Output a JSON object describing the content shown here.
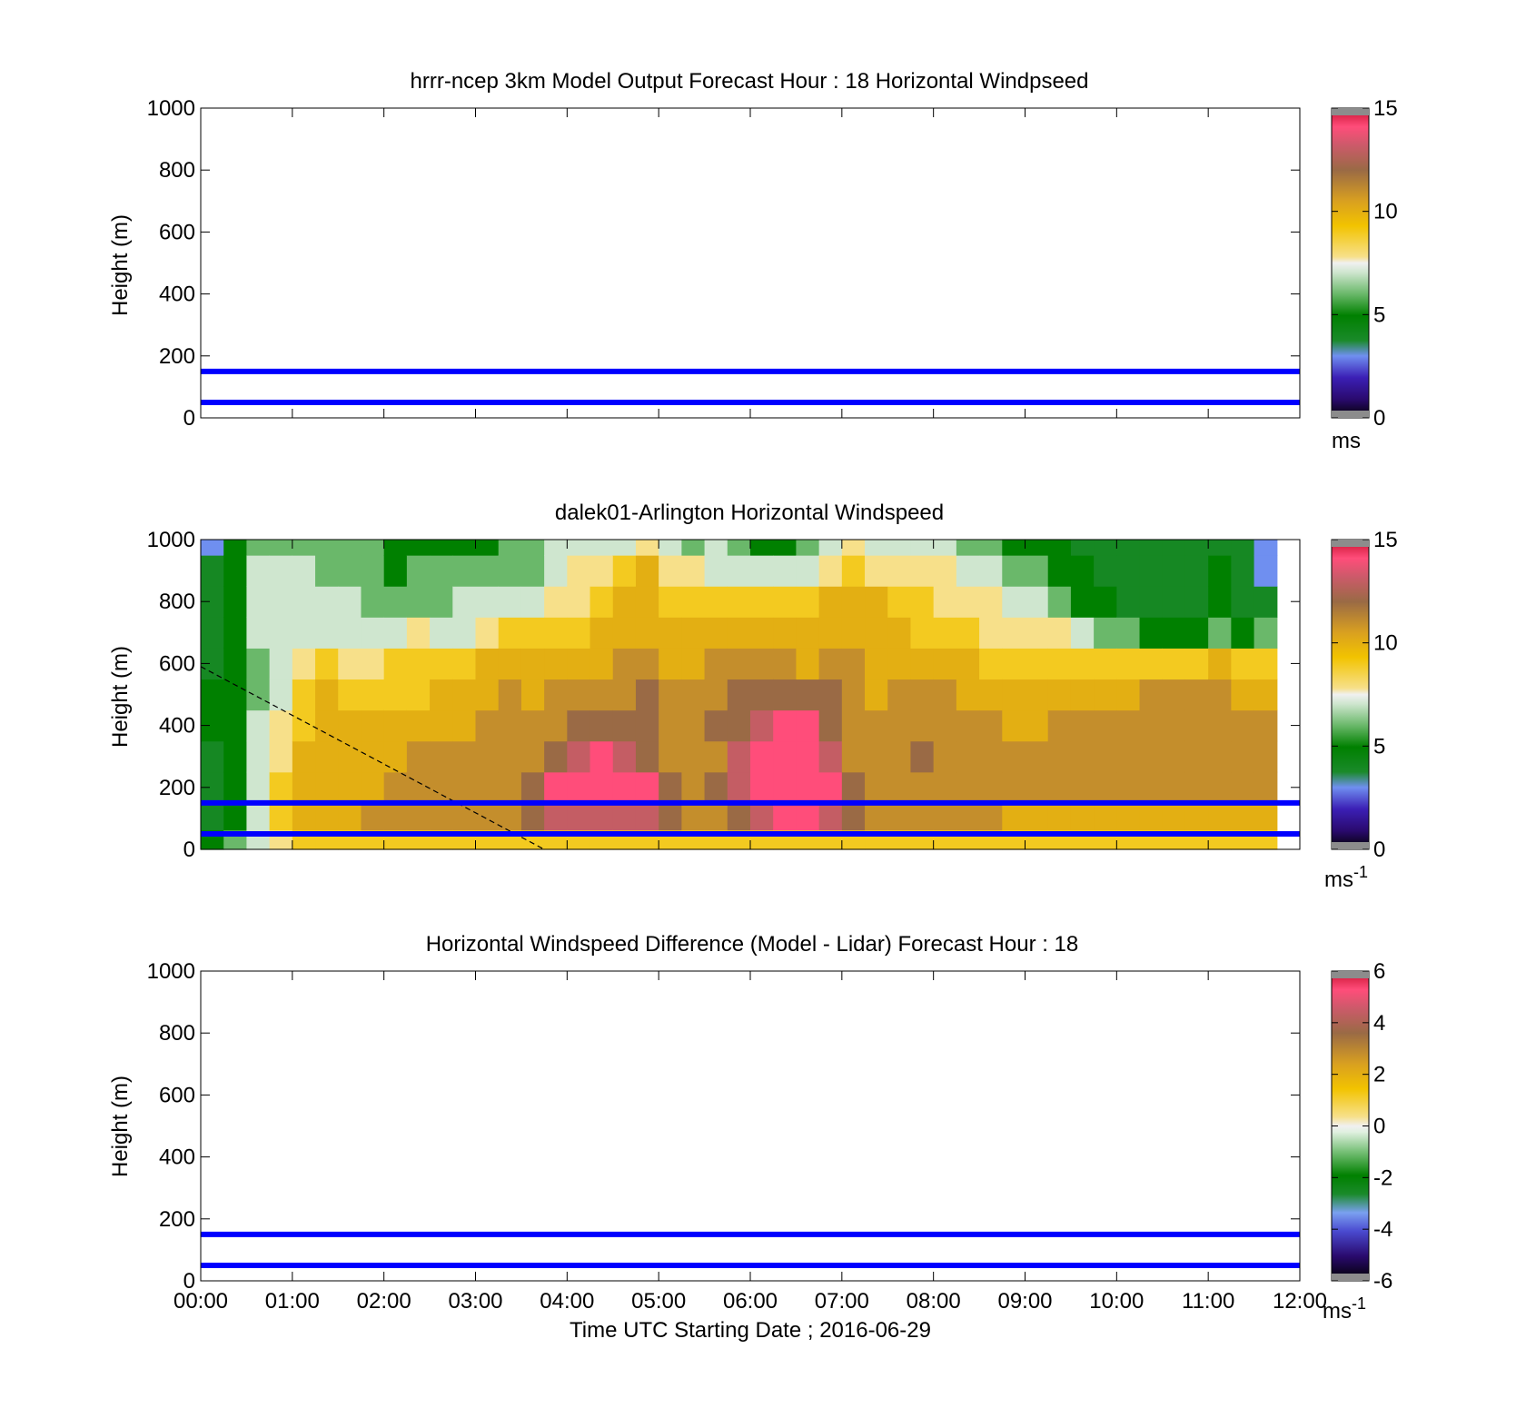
{
  "figure": {
    "xlabel": "Time UTC  Starting Date ; 2016-06-29",
    "x_ticks": [
      "00:00",
      "01:00",
      "02:00",
      "03:00",
      "04:00",
      "05:00",
      "06:00",
      "07:00",
      "08:00",
      "09:00",
      "10:00",
      "11:00",
      "12:00"
    ]
  },
  "chart_data": [
    {
      "type": "heatmap",
      "title": "hrrr-ncep 3km Model Output   Forecast Hour : 18 Horizontal Windpseed",
      "ylabel": "Height (m)",
      "xlim": [
        0,
        12
      ],
      "ylim": [
        0,
        1000
      ],
      "y_ticks": [
        "0",
        "200",
        "400",
        "600",
        "800",
        "1000"
      ],
      "colorbar": {
        "range": [
          0,
          15
        ],
        "ticks": [
          "0",
          "5",
          "10",
          "15"
        ],
        "unit": "ms"
      },
      "reference_lines_m": [
        50,
        150
      ],
      "data": "empty"
    },
    {
      "type": "heatmap",
      "title": "dalek01-Arlington  Horizontal Windspeed",
      "ylabel": "Height (m)",
      "xlim": [
        0,
        12
      ],
      "ylim": [
        0,
        1000
      ],
      "y_ticks": [
        "0",
        "200",
        "400",
        "600",
        "800",
        "1000"
      ],
      "colorbar": {
        "range": [
          0,
          15
        ],
        "ticks": [
          "0",
          "5",
          "10",
          "15"
        ],
        "unit": "ms",
        "unit_exponent": "-1"
      },
      "reference_lines_m": [
        50,
        150
      ],
      "dashed_line": {
        "from": [
          0,
          590
        ],
        "to": [
          3.75,
          0
        ]
      },
      "columns_hours": [
        0.125,
        0.375,
        0.625,
        0.875,
        1.125,
        1.375,
        1.625,
        1.875,
        2.125,
        2.375,
        2.625,
        2.875,
        3.125,
        3.375,
        3.625,
        3.875,
        4.125,
        4.375,
        4.625,
        4.875,
        5.125,
        5.375,
        5.625,
        5.875,
        6.125,
        6.375,
        6.625,
        6.875,
        7.125,
        7.375,
        7.625,
        7.875,
        8.125,
        8.375,
        8.625,
        8.875,
        9.125,
        9.375,
        9.625,
        9.875,
        10.125,
        10.375,
        10.625,
        10.875,
        11.125,
        11.375,
        11.625
      ],
      "profile_heights_m": [
        25,
        100,
        200,
        300,
        400,
        500,
        600,
        700,
        800,
        900,
        1000
      ],
      "windspeed_ms": [
        [
          5,
          4,
          4,
          4,
          5,
          5,
          4,
          4,
          4,
          4,
          3
        ],
        [
          6,
          5,
          5,
          5,
          5,
          5,
          5,
          5,
          5,
          5,
          5
        ],
        [
          7,
          7,
          7,
          7,
          7,
          6,
          6,
          7,
          7,
          7,
          6
        ],
        [
          8,
          9,
          9,
          8,
          8,
          7,
          7,
          7,
          7,
          7,
          6
        ],
        [
          9,
          10,
          10,
          10,
          9,
          9,
          8,
          7,
          7,
          7,
          6
        ],
        [
          9,
          10,
          10,
          10,
          10,
          10,
          9,
          7,
          7,
          6,
          6
        ],
        [
          9,
          10,
          10,
          10,
          10,
          9,
          8,
          7,
          7,
          6,
          6
        ],
        [
          9,
          11,
          10,
          10,
          10,
          9,
          8,
          7,
          6,
          6,
          6
        ],
        [
          9,
          11,
          11,
          10,
          10,
          9,
          9,
          7,
          6,
          5,
          5
        ],
        [
          9,
          11,
          11,
          11,
          10,
          9,
          9,
          8,
          6,
          6,
          5
        ],
        [
          9,
          11,
          11,
          11,
          10,
          10,
          9,
          7,
          6,
          6,
          5
        ],
        [
          9,
          11,
          11,
          11,
          10,
          10,
          9,
          7,
          7,
          6,
          5
        ],
        [
          9,
          11,
          11,
          11,
          11,
          10,
          10,
          8,
          7,
          6,
          5
        ],
        [
          9,
          11,
          11,
          11,
          11,
          11,
          10,
          9,
          7,
          6,
          6
        ],
        [
          9,
          12,
          12,
          11,
          11,
          10,
          10,
          9,
          7,
          6,
          6
        ],
        [
          9,
          13,
          14,
          12,
          11,
          11,
          10,
          9,
          8,
          7,
          7
        ],
        [
          9,
          13,
          14,
          13,
          12,
          11,
          10,
          9,
          8,
          8,
          7
        ],
        [
          9,
          13,
          14,
          14,
          12,
          11,
          10,
          10,
          9,
          8,
          7
        ],
        [
          9,
          13,
          14,
          13,
          12,
          11,
          11,
          10,
          10,
          9,
          7
        ],
        [
          9,
          13,
          14,
          12,
          12,
          12,
          11,
          10,
          10,
          10,
          8
        ],
        [
          9,
          12,
          12,
          11,
          11,
          11,
          10,
          10,
          9,
          8,
          7
        ],
        [
          9,
          11,
          11,
          11,
          11,
          11,
          10,
          10,
          9,
          8,
          6
        ],
        [
          9,
          11,
          12,
          11,
          12,
          11,
          11,
          10,
          9,
          7,
          7
        ],
        [
          9,
          12,
          13,
          13,
          12,
          12,
          11,
          10,
          9,
          7,
          6
        ],
        [
          9,
          13,
          14,
          14,
          13,
          12,
          11,
          10,
          9,
          7,
          5
        ],
        [
          9,
          14,
          14,
          14,
          14,
          12,
          11,
          10,
          9,
          7,
          5
        ],
        [
          9,
          14,
          14,
          14,
          14,
          12,
          10,
          10,
          9,
          7,
          6
        ],
        [
          9,
          13,
          14,
          13,
          12,
          12,
          11,
          10,
          10,
          8,
          7
        ],
        [
          9,
          12,
          12,
          11,
          11,
          11,
          11,
          10,
          10,
          9,
          8
        ],
        [
          9,
          11,
          11,
          11,
          11,
          10,
          10,
          10,
          10,
          8,
          7
        ],
        [
          9,
          11,
          11,
          11,
          11,
          11,
          10,
          10,
          9,
          8,
          7
        ],
        [
          9,
          11,
          11,
          12,
          11,
          11,
          10,
          9,
          9,
          8,
          7
        ],
        [
          9,
          11,
          11,
          11,
          11,
          11,
          10,
          9,
          8,
          8,
          7
        ],
        [
          9,
          11,
          11,
          11,
          11,
          10,
          10,
          9,
          8,
          7,
          6
        ],
        [
          9,
          11,
          11,
          11,
          11,
          10,
          9,
          8,
          8,
          7,
          6
        ],
        [
          9,
          10,
          11,
          11,
          10,
          10,
          9,
          8,
          7,
          6,
          5
        ],
        [
          9,
          10,
          11,
          11,
          10,
          10,
          9,
          8,
          7,
          6,
          5
        ],
        [
          9,
          10,
          11,
          11,
          11,
          10,
          9,
          8,
          6,
          5,
          5
        ],
        [
          9,
          10,
          11,
          11,
          11,
          10,
          9,
          7,
          5,
          5,
          4
        ],
        [
          9,
          10,
          11,
          11,
          11,
          10,
          9,
          6,
          5,
          4,
          4
        ],
        [
          9,
          10,
          11,
          11,
          11,
          10,
          9,
          6,
          4,
          4,
          4
        ],
        [
          9,
          10,
          11,
          11,
          11,
          11,
          9,
          5,
          4,
          4,
          4
        ],
        [
          9,
          10,
          11,
          11,
          11,
          11,
          9,
          5,
          4,
          4,
          4
        ],
        [
          9,
          10,
          11,
          11,
          11,
          11,
          9,
          5,
          4,
          4,
          4
        ],
        [
          9,
          10,
          11,
          11,
          11,
          11,
          10,
          6,
          5,
          5,
          4
        ],
        [
          9,
          10,
          11,
          11,
          11,
          10,
          9,
          5,
          4,
          4,
          4
        ],
        [
          9,
          10,
          11,
          11,
          11,
          10,
          9,
          6,
          4,
          3,
          3
        ]
      ]
    },
    {
      "type": "heatmap",
      "title": "Horizontal Windspeed Difference (Model - Lidar) Forecast Hour : 18",
      "ylabel": "Height (m)",
      "xlim": [
        0,
        12
      ],
      "ylim": [
        0,
        1000
      ],
      "y_ticks": [
        "0",
        "200",
        "400",
        "600",
        "800",
        "1000"
      ],
      "colorbar": {
        "range": [
          -6,
          6
        ],
        "ticks": [
          "-6",
          "-4",
          "-2",
          "0",
          "2",
          "4",
          "6"
        ],
        "unit": "ms",
        "unit_exponent": "-1"
      },
      "reference_lines_m": [
        50,
        150
      ],
      "data": "empty"
    }
  ]
}
